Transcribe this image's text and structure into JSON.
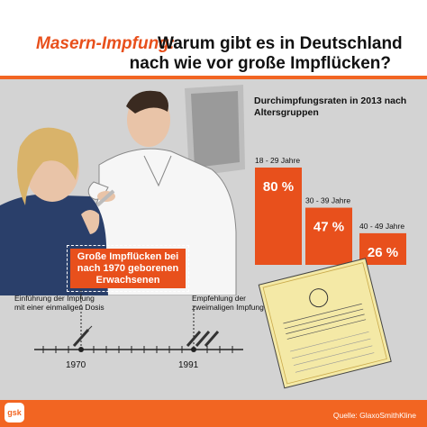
{
  "title": {
    "prefix": "Masern-Impfung:",
    "rest": "Warum gibt es in Deutschland",
    "line2": "nach wie vor große Impflücken?"
  },
  "chart_data": {
    "type": "bar",
    "title": "Durchimpfungsraten in 2013 nach Altersgruppen",
    "categories": [
      "18 - 29 Jahre",
      "30 - 39 Jahre",
      "40 - 49 Jahre"
    ],
    "values": [
      80,
      47,
      26
    ],
    "value_labels": [
      "80 %",
      "47 %",
      "26 %"
    ],
    "unit": "%",
    "bar_color": "#e8501c"
  },
  "callout": {
    "line1": "Große Impflücken bei",
    "line2": "nach 1970 geborenen",
    "line3": "Erwachsenen"
  },
  "timeline": {
    "event1": {
      "line1": "Einführung der Impfung",
      "line2": "mit einer einmaligen Dosis",
      "year": "1970"
    },
    "event2": {
      "line1": "Empfehlung der",
      "line2": "zweimaligen Impfung",
      "year": "1991"
    }
  },
  "logo_text": "gsk",
  "source": "Quelle: GlaxoSmithKline",
  "colors": {
    "accent": "#e8501c",
    "background": "#d3d3d3"
  }
}
